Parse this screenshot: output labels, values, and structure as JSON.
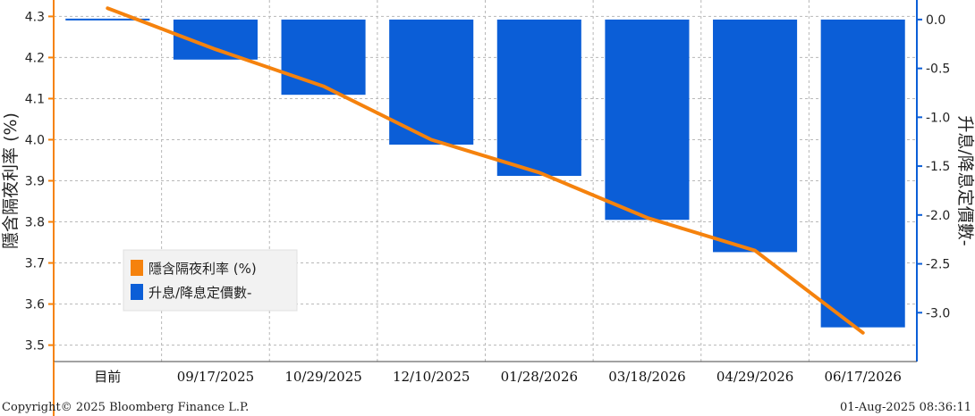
{
  "chart_data": {
    "type": "bar+line",
    "categories": [
      "目前",
      "09/17/2025",
      "10/29/2025",
      "12/10/2025",
      "01/28/2026",
      "03/18/2026",
      "04/29/2026",
      "06/17/2026"
    ],
    "series": [
      {
        "name": "隱含隔夜利率 (%)",
        "axis": "left",
        "kind": "line",
        "color": "#f5820d",
        "values": [
          4.32,
          4.22,
          4.13,
          4.0,
          3.92,
          3.81,
          3.73,
          3.53
        ]
      },
      {
        "name": "升息/降息定價數-",
        "axis": "right",
        "kind": "bar",
        "color": "#0b5ed7",
        "values": [
          0.0,
          -0.41,
          -0.77,
          -1.28,
          -1.6,
          -2.05,
          -2.38,
          -3.15
        ]
      }
    ],
    "ylabel_left": "隱含隔夜利率 (%)",
    "ylabel_right": "升息/降息定價數-",
    "ylim_left": [
      3.46,
      4.34
    ],
    "yticks_left": [
      "4.3",
      "4.2",
      "4.1",
      "4.0",
      "3.9",
      "3.8",
      "3.7",
      "3.6",
      "3.5"
    ],
    "ylim_right": [
      -3.5,
      0.2
    ],
    "yticks_right": [
      "0.0",
      "-0.5",
      "-1.0",
      "-1.5",
      "-2.0",
      "-2.5",
      "-3.0"
    ],
    "grid": true,
    "legend_position": "bottom-left"
  },
  "footer": {
    "copyright": "Copyright© 2025 Bloomberg Finance L.P.",
    "timestamp": "01-Aug-2025 08:36:11"
  }
}
